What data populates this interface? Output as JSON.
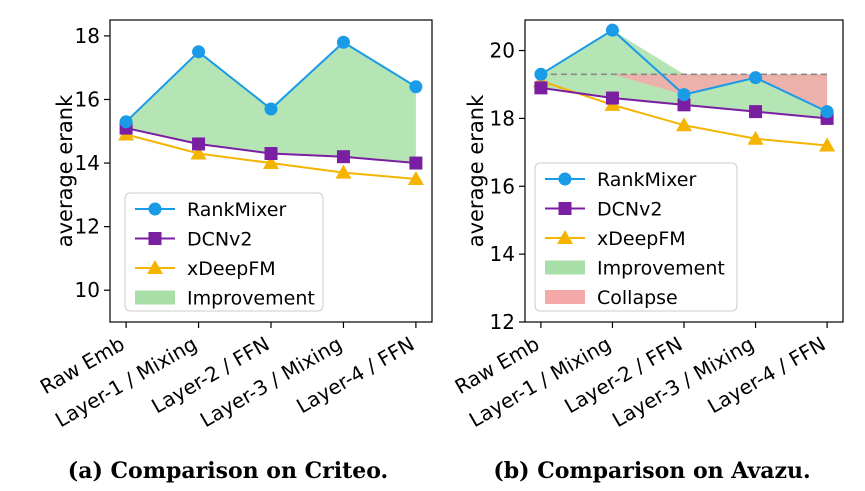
{
  "chart_data": [
    {
      "type": "line",
      "caption": "(a) Comparison on Criteo.",
      "ylabel": "average erank",
      "xlabel": "",
      "categories": [
        "Raw Emb",
        "Layer-1 / Mixing",
        "Layer-2 / FFN",
        "Layer-3 / Mixing",
        "Layer-4 / FFN"
      ],
      "ylim": [
        9,
        18.5
      ],
      "yticks": [
        10,
        12,
        14,
        16,
        18
      ],
      "grid": false,
      "legend_position": "bottom-left",
      "series": [
        {
          "name": "RankMixer",
          "values": [
            15.3,
            17.5,
            15.7,
            17.8,
            16.4
          ],
          "color": "#1a9be8",
          "marker": "circle"
        },
        {
          "name": "DCNv2",
          "values": [
            15.1,
            14.6,
            14.3,
            14.2,
            14.0
          ],
          "color": "#7b1fa2",
          "marker": "square"
        },
        {
          "name": "xDeepFM",
          "values": [
            14.9,
            14.3,
            14.0,
            13.7,
            13.5
          ],
          "color": "#f5b400",
          "marker": "triangle"
        }
      ],
      "fills": [
        {
          "name": "Improvement",
          "color": "#a8dfa8"
        }
      ]
    },
    {
      "type": "line",
      "caption": "(b) Comparison on Avazu.",
      "ylabel": "average erank",
      "xlabel": "",
      "categories": [
        "Raw Emb",
        "Layer-1 / Mixing",
        "Layer-2 / FFN",
        "Layer-3 / Mixing",
        "Layer-4 / FFN"
      ],
      "ylim": [
        12,
        20.9
      ],
      "yticks": [
        12,
        14,
        16,
        18,
        20
      ],
      "grid": false,
      "legend_position": "bottom-left",
      "reference_line": {
        "value": 19.3,
        "style": "dashed",
        "color": "#888888"
      },
      "series": [
        {
          "name": "RankMixer",
          "values": [
            19.3,
            20.6,
            18.7,
            19.2,
            18.2
          ],
          "color": "#1a9be8",
          "marker": "circle"
        },
        {
          "name": "DCNv2",
          "values": [
            18.9,
            18.6,
            18.4,
            18.2,
            18.0
          ],
          "color": "#7b1fa2",
          "marker": "square"
        },
        {
          "name": "xDeepFM",
          "values": [
            19.1,
            18.4,
            17.8,
            17.4,
            17.2
          ],
          "color": "#f5b400",
          "marker": "triangle"
        }
      ],
      "fills": [
        {
          "name": "Improvement",
          "color": "#a8dfa8"
        },
        {
          "name": "Collapse",
          "color": "#f5a8a8"
        }
      ]
    }
  ]
}
